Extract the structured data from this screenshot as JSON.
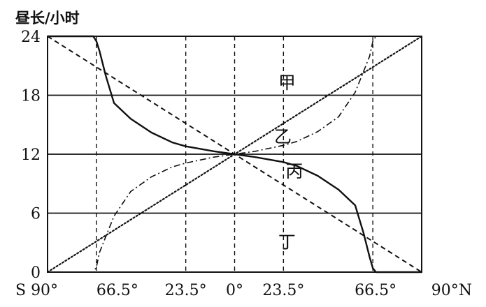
{
  "chart_data": {
    "type": "line",
    "ylabel": "昼长/小时",
    "ylim": [
      0,
      24
    ],
    "xlim": [
      -90,
      90
    ],
    "grid_y": [
      6,
      12,
      18
    ],
    "grid_x": [
      -66.5,
      -23.5,
      0,
      23.5,
      66.5
    ],
    "y_ticks": [
      {
        "value": 0,
        "label": "0"
      },
      {
        "value": 6,
        "label": "6"
      },
      {
        "value": 12,
        "label": "12"
      },
      {
        "value": 18,
        "label": "18"
      },
      {
        "value": 24,
        "label": "24"
      }
    ],
    "x_ticks": [
      {
        "value": -90,
        "label": "S 90°"
      },
      {
        "value": -66.5,
        "label": "66.5°"
      },
      {
        "value": -23.5,
        "label": "23.5°"
      },
      {
        "value": 0,
        "label": "0°"
      },
      {
        "value": 23.5,
        "label": "23.5°"
      },
      {
        "value": 66.5,
        "label": "66.5°"
      },
      {
        "value": 90,
        "label": "90°N"
      }
    ],
    "series": [
      {
        "name": "甲",
        "style": "dotted",
        "label_at": [
          21,
          19.3
        ],
        "points": [
          [
            -90,
            0
          ],
          [
            90,
            24
          ]
        ]
      },
      {
        "name": "乙",
        "style": "dashdot",
        "label_at": [
          19,
          13.8
        ],
        "points": [
          [
            -90,
            0
          ],
          [
            -68,
            0
          ],
          [
            -66.5,
            0.5
          ],
          [
            -65,
            2
          ],
          [
            -62,
            3.6
          ],
          [
            -58,
            5.7
          ],
          [
            -50,
            8.2
          ],
          [
            -40,
            9.7
          ],
          [
            -30,
            10.7
          ],
          [
            -23.5,
            11.1
          ],
          [
            -10,
            11.7
          ],
          [
            0,
            12
          ],
          [
            10,
            12.3
          ],
          [
            23.5,
            12.9
          ],
          [
            30,
            13.3
          ],
          [
            40,
            14.3
          ],
          [
            50,
            15.8
          ],
          [
            58,
            18.3
          ],
          [
            62,
            20.4
          ],
          [
            65,
            22
          ],
          [
            66.5,
            23.5
          ],
          [
            68,
            24
          ],
          [
            90,
            24
          ]
        ]
      },
      {
        "name": "丙",
        "style": "solid",
        "label_at": [
          24.5,
          10.3
        ],
        "points": [
          [
            -90,
            24
          ],
          [
            -68,
            24
          ],
          [
            -66.5,
            23.5
          ],
          [
            -65,
            22.5
          ],
          [
            -62,
            20
          ],
          [
            -58,
            17.2
          ],
          [
            -50,
            15.6
          ],
          [
            -40,
            14.2
          ],
          [
            -30,
            13.2
          ],
          [
            -23.5,
            12.8
          ],
          [
            -10,
            12.3
          ],
          [
            0,
            12
          ],
          [
            10,
            11.7
          ],
          [
            23.5,
            11.2
          ],
          [
            30,
            10.8
          ],
          [
            40,
            9.8
          ],
          [
            50,
            8.4
          ],
          [
            58,
            6.8
          ],
          [
            62,
            4
          ],
          [
            65,
            1.5
          ],
          [
            66.5,
            0.4
          ],
          [
            68,
            0
          ],
          [
            90,
            0
          ]
        ]
      },
      {
        "name": "丁",
        "style": "dashed",
        "label_at": [
          21,
          3.1
        ],
        "points": [
          [
            -90,
            24
          ],
          [
            90,
            0
          ]
        ]
      }
    ]
  }
}
